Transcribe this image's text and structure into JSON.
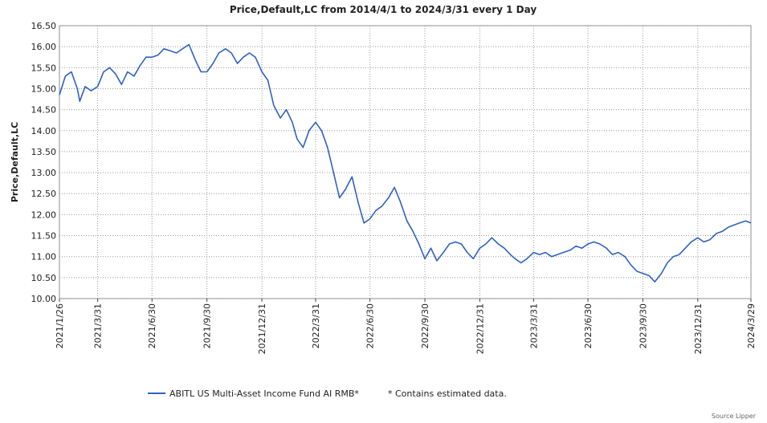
{
  "chart_data": {
    "type": "line",
    "title": "Price,Default,LC from 2014/4/1 to 2024/3/31 every 1 Day",
    "xlabel": "",
    "ylabel": "Price,Default,LC",
    "ylim": [
      10.0,
      16.5
    ],
    "yticks": [
      "10.00",
      "10.50",
      "11.00",
      "11.50",
      "12.00",
      "12.50",
      "13.00",
      "13.50",
      "14.00",
      "14.50",
      "15.00",
      "15.50",
      "16.00",
      "16.50"
    ],
    "xticks": [
      "2021/1/26",
      "2021/3/31",
      "2021/6/30",
      "2021/9/30",
      "2021/12/31",
      "2022/3/31",
      "2022/6/30",
      "2022/9/30",
      "2022/12/31",
      "2023/3/31",
      "2023/6/30",
      "2023/9/30",
      "2023/12/31",
      "2024/3/29"
    ],
    "xlim": [
      "2021/1/26",
      "2024/3/29"
    ],
    "grid": true,
    "series": [
      {
        "name": "ABITL US Multi-Asset Income Fund AI RMB*",
        "color": "#2f62c2",
        "points": [
          [
            "2021/1/26",
            14.85
          ],
          [
            "2021/2/5",
            15.3
          ],
          [
            "2021/2/15",
            15.4
          ],
          [
            "2021/2/25",
            15.0
          ],
          [
            "2021/3/1",
            14.7
          ],
          [
            "2021/3/10",
            15.05
          ],
          [
            "2021/3/20",
            14.95
          ],
          [
            "2021/3/31",
            15.05
          ],
          [
            "2021/4/10",
            15.4
          ],
          [
            "2021/4/20",
            15.5
          ],
          [
            "2021/4/30",
            15.35
          ],
          [
            "2021/5/10",
            15.1
          ],
          [
            "2021/5/20",
            15.4
          ],
          [
            "2021/5/31",
            15.3
          ],
          [
            "2021/6/10",
            15.55
          ],
          [
            "2021/6/20",
            15.75
          ],
          [
            "2021/6/30",
            15.75
          ],
          [
            "2021/7/10",
            15.8
          ],
          [
            "2021/7/20",
            15.95
          ],
          [
            "2021/7/31",
            15.9
          ],
          [
            "2021/8/10",
            15.85
          ],
          [
            "2021/8/20",
            15.95
          ],
          [
            "2021/8/31",
            16.05
          ],
          [
            "2021/9/10",
            15.7
          ],
          [
            "2021/9/20",
            15.4
          ],
          [
            "2021/9/30",
            15.4
          ],
          [
            "2021/10/10",
            15.6
          ],
          [
            "2021/10/20",
            15.85
          ],
          [
            "2021/10/31",
            15.95
          ],
          [
            "2021/11/10",
            15.85
          ],
          [
            "2021/11/20",
            15.6
          ],
          [
            "2021/11/30",
            15.75
          ],
          [
            "2021/12/10",
            15.85
          ],
          [
            "2021/12/20",
            15.75
          ],
          [
            "2021/12/31",
            15.4
          ],
          [
            "2022/1/10",
            15.2
          ],
          [
            "2022/1/20",
            14.6
          ],
          [
            "2022/1/31",
            14.3
          ],
          [
            "2022/2/10",
            14.5
          ],
          [
            "2022/2/20",
            14.2
          ],
          [
            "2022/2/28",
            13.8
          ],
          [
            "2022/3/10",
            13.6
          ],
          [
            "2022/3/20",
            14.0
          ],
          [
            "2022/3/31",
            14.2
          ],
          [
            "2022/4/10",
            14.0
          ],
          [
            "2022/4/20",
            13.6
          ],
          [
            "2022/4/30",
            13.0
          ],
          [
            "2022/5/10",
            12.4
          ],
          [
            "2022/5/20",
            12.6
          ],
          [
            "2022/5/31",
            12.9
          ],
          [
            "2022/6/10",
            12.3
          ],
          [
            "2022/6/20",
            11.8
          ],
          [
            "2022/6/30",
            11.9
          ],
          [
            "2022/7/10",
            12.1
          ],
          [
            "2022/7/20",
            12.2
          ],
          [
            "2022/7/31",
            12.4
          ],
          [
            "2022/8/10",
            12.65
          ],
          [
            "2022/8/20",
            12.3
          ],
          [
            "2022/8/31",
            11.85
          ],
          [
            "2022/9/10",
            11.6
          ],
          [
            "2022/9/20",
            11.3
          ],
          [
            "2022/9/30",
            10.95
          ],
          [
            "2022/10/10",
            11.2
          ],
          [
            "2022/10/20",
            10.9
          ],
          [
            "2022/10/31",
            11.1
          ],
          [
            "2022/11/10",
            11.3
          ],
          [
            "2022/11/20",
            11.35
          ],
          [
            "2022/11/30",
            11.3
          ],
          [
            "2022/12/10",
            11.1
          ],
          [
            "2022/12/20",
            10.95
          ],
          [
            "2022/12/31",
            11.2
          ],
          [
            "2023/1/10",
            11.3
          ],
          [
            "2023/1/20",
            11.45
          ],
          [
            "2023/1/31",
            11.3
          ],
          [
            "2023/2/10",
            11.2
          ],
          [
            "2023/2/20",
            11.05
          ],
          [
            "2023/2/28",
            10.95
          ],
          [
            "2023/3/10",
            10.85
          ],
          [
            "2023/3/20",
            10.95
          ],
          [
            "2023/3/31",
            11.1
          ],
          [
            "2023/4/10",
            11.05
          ],
          [
            "2023/4/20",
            11.1
          ],
          [
            "2023/4/30",
            11.0
          ],
          [
            "2023/5/10",
            11.05
          ],
          [
            "2023/5/20",
            11.1
          ],
          [
            "2023/5/31",
            11.15
          ],
          [
            "2023/6/10",
            11.25
          ],
          [
            "2023/6/20",
            11.2
          ],
          [
            "2023/6/30",
            11.3
          ],
          [
            "2023/7/10",
            11.35
          ],
          [
            "2023/7/20",
            11.3
          ],
          [
            "2023/7/31",
            11.2
          ],
          [
            "2023/8/10",
            11.05
          ],
          [
            "2023/8/20",
            11.1
          ],
          [
            "2023/8/31",
            11.0
          ],
          [
            "2023/9/10",
            10.8
          ],
          [
            "2023/9/20",
            10.65
          ],
          [
            "2023/9/30",
            10.6
          ],
          [
            "2023/10/10",
            10.55
          ],
          [
            "2023/10/20",
            10.4
          ],
          [
            "2023/10/31",
            10.6
          ],
          [
            "2023/11/10",
            10.85
          ],
          [
            "2023/11/20",
            11.0
          ],
          [
            "2023/11/30",
            11.05
          ],
          [
            "2023/12/10",
            11.2
          ],
          [
            "2023/12/20",
            11.35
          ],
          [
            "2023/12/31",
            11.45
          ],
          [
            "2024/1/10",
            11.35
          ],
          [
            "2024/1/20",
            11.4
          ],
          [
            "2024/1/31",
            11.55
          ],
          [
            "2024/2/10",
            11.6
          ],
          [
            "2024/2/20",
            11.7
          ],
          [
            "2024/2/29",
            11.75
          ],
          [
            "2024/3/10",
            11.8
          ],
          [
            "2024/3/20",
            11.85
          ],
          [
            "2024/3/29",
            11.8
          ]
        ]
      }
    ],
    "legend": {
      "placement": "bottom",
      "label": "ABITL US Multi-Asset Income Fund AI RMB*",
      "note": "*  Contains estimated data."
    },
    "source": "Source Lipper"
  }
}
